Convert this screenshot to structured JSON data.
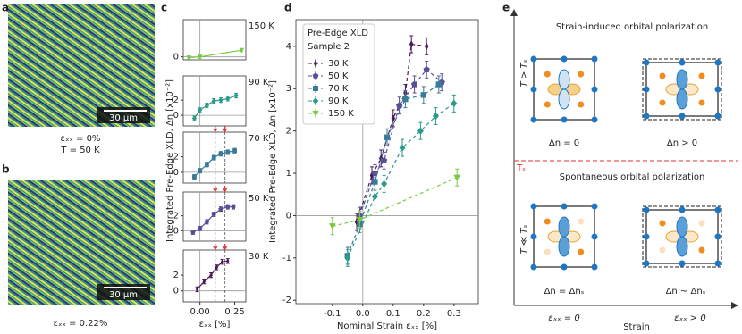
{
  "panels": {
    "labels": [
      "a",
      "b",
      "c",
      "d",
      "e"
    ]
  },
  "images": [
    {
      "scale_bar": "30 μm",
      "caption": [
        "εₓₓ = 0%",
        "T = 50 K"
      ]
    },
    {
      "scale_bar": "30 μm",
      "caption": [
        "εₓₓ = 0.22%"
      ]
    }
  ],
  "chart_data": [
    {
      "type": "line",
      "title": "150 K",
      "xlim": [
        -0.12,
        0.33
      ],
      "ylim": [
        -0.4,
        5
      ],
      "yticks": [
        0
      ],
      "series": [
        {
          "color": "#7ac943",
          "marker": "triangle_down",
          "x": [
            -0.08,
            0.0,
            0.3
          ],
          "values": [
            -0.1,
            0.0,
            0.9
          ],
          "errors": [
            0.2,
            0.2,
            0.2
          ]
        }
      ]
    },
    {
      "type": "line",
      "title": "90 K",
      "xlim": [
        -0.12,
        0.33
      ],
      "ylim": [
        -1.4,
        5.2
      ],
      "yticks": [
        0,
        2
      ],
      "series": [
        {
          "color": "#2a9a8a",
          "marker": "diamond",
          "x": [
            -0.04,
            0.0,
            0.05,
            0.1,
            0.15,
            0.2,
            0.26
          ],
          "values": [
            -0.4,
            0.7,
            1.3,
            1.9,
            2.0,
            2.2,
            2.6
          ],
          "errors": [
            0.3,
            0.3,
            0.3,
            0.3,
            0.3,
            0.3,
            0.3
          ]
        }
      ]
    },
    {
      "type": "line",
      "title": "70 K",
      "ylabel": "Integrated Pre-Edge XLD, Δn [x10⁻²]",
      "xlim": [
        -0.12,
        0.33
      ],
      "ylim": [
        -1.4,
        5.2
      ],
      "yticks": [
        0,
        2
      ],
      "vlines": [
        0.11,
        0.18
      ],
      "series": [
        {
          "color": "#3a7a9a",
          "marker": "square",
          "x": [
            -0.04,
            0.0,
            0.05,
            0.1,
            0.15,
            0.2,
            0.25
          ],
          "values": [
            -0.6,
            0.2,
            1.0,
            1.9,
            2.4,
            2.6,
            2.8
          ],
          "errors": [
            0.3,
            0.3,
            0.3,
            0.3,
            0.3,
            0.3,
            0.3
          ]
        }
      ]
    },
    {
      "type": "line",
      "title": "50 K",
      "xlim": [
        -0.12,
        0.33
      ],
      "ylim": [
        -1.4,
        5.2
      ],
      "yticks": [
        0,
        2
      ],
      "vlines": [
        0.11,
        0.18
      ],
      "series": [
        {
          "color": "#5a4f96",
          "marker": "pentagon",
          "x": [
            -0.05,
            0.0,
            0.05,
            0.1,
            0.15,
            0.2,
            0.24
          ],
          "values": [
            -0.2,
            0.3,
            1.2,
            2.2,
            2.9,
            3.2,
            3.2
          ],
          "errors": [
            0.3,
            0.3,
            0.3,
            0.3,
            0.3,
            0.3,
            0.3
          ]
        }
      ]
    },
    {
      "type": "line",
      "title": "30 K",
      "xlabel": "εₓₓ [%]",
      "xlim": [
        -0.12,
        0.33
      ],
      "ylim": [
        -1.4,
        5.2
      ],
      "yticks": [
        0,
        2
      ],
      "vlines": [
        0.11,
        0.18
      ],
      "xticks": [
        {
          "value": 0,
          "label": "0.00"
        },
        {
          "value": 0.25,
          "label": "0.25"
        }
      ],
      "series": [
        {
          "color": "#4a1a5c",
          "marker": "thin_diamond",
          "x": [
            -0.02,
            0.03,
            0.08,
            0.12,
            0.16,
            0.2
          ],
          "values": [
            0.2,
            1.2,
            2.0,
            3.0,
            3.7,
            3.8
          ],
          "errors": [
            0.3,
            0.3,
            0.3,
            0.3,
            0.3,
            0.3
          ]
        }
      ]
    },
    {
      "type": "line",
      "title": "Pre-Edge XLD",
      "subtitle": "Sample 2",
      "xlabel": "Nominal Strain εₓₓ [%]",
      "ylabel": "Integrated Pre-Edge XLD, Δn [x10⁻²]",
      "xlim": [
        -0.22,
        0.38
      ],
      "ylim": [
        -2.08,
        4.63
      ],
      "xticks": [
        -0.1,
        {
          "value": 0,
          "label": "0.0"
        },
        0.1,
        0.2,
        0.3
      ],
      "yticks": [
        -2,
        -1,
        0,
        1,
        2,
        3,
        4
      ],
      "line_style": "dashed",
      "legend": "upper-left",
      "series": [
        {
          "name": "30 K",
          "color": "#4a1a5c",
          "marker": "thin_diamond",
          "x": [
            -0.02,
            0.03,
            0.06,
            0.1,
            0.14,
            0.16,
            0.21
          ],
          "values": [
            -0.15,
            0.95,
            1.35,
            2.3,
            2.9,
            4.05,
            4.0
          ],
          "errors": [
            0.2,
            0.2,
            0.2,
            0.2,
            0.2,
            0.2,
            0.2
          ]
        },
        {
          "name": "50 K",
          "color": "#5a4f96",
          "marker": "pentagon",
          "x": [
            -0.01,
            0.04,
            0.07,
            0.12,
            0.17,
            0.21,
            0.26
          ],
          "values": [
            0.0,
            1.0,
            1.3,
            2.6,
            3.1,
            3.45,
            3.15
          ],
          "errors": [
            0.2,
            0.2,
            0.2,
            0.2,
            0.2,
            0.2,
            0.2
          ]
        },
        {
          "name": "70 K",
          "color": "#3a7a9a",
          "marker": "square",
          "x": [
            -0.05,
            -0.01,
            0.04,
            0.08,
            0.14,
            0.2,
            0.25
          ],
          "values": [
            -0.95,
            -0.2,
            0.8,
            1.85,
            2.75,
            2.85,
            3.1
          ],
          "errors": [
            0.2,
            0.2,
            0.2,
            0.2,
            0.2,
            0.2,
            0.2
          ]
        },
        {
          "name": "90 K",
          "color": "#2a9a8a",
          "marker": "diamond",
          "x": [
            -0.05,
            0.04,
            0.07,
            0.13,
            0.19,
            0.24,
            0.3
          ],
          "values": [
            -1.0,
            0.45,
            0.75,
            1.6,
            2.0,
            2.35,
            2.65
          ],
          "errors": [
            0.2,
            0.2,
            0.2,
            0.2,
            0.2,
            0.2,
            0.2
          ]
        },
        {
          "name": "150 K",
          "color": "#7ac943",
          "marker": "triangle_down",
          "x": [
            -0.1,
            -0.01,
            0.31
          ],
          "values": [
            -0.25,
            -0.1,
            0.9
          ],
          "errors": [
            0.2,
            0.2,
            0.2
          ]
        }
      ]
    }
  ],
  "diagram": {
    "top_title": "Strain-induced orbital polarization",
    "top_axis": "T > Tₛ",
    "transition": "Tₛ",
    "bottom_title": "Spontaneous orbital polarization",
    "bottom_axis": "T ≪ Tₛ",
    "cells": [
      "Δn = 0",
      "Δn > 0",
      "Δn = Δnₛ",
      "Δn ~ Δnₛ"
    ],
    "x_left": "εₓₓ = 0",
    "x_label": "Strain",
    "x_right": "εₓₓ > 0"
  }
}
